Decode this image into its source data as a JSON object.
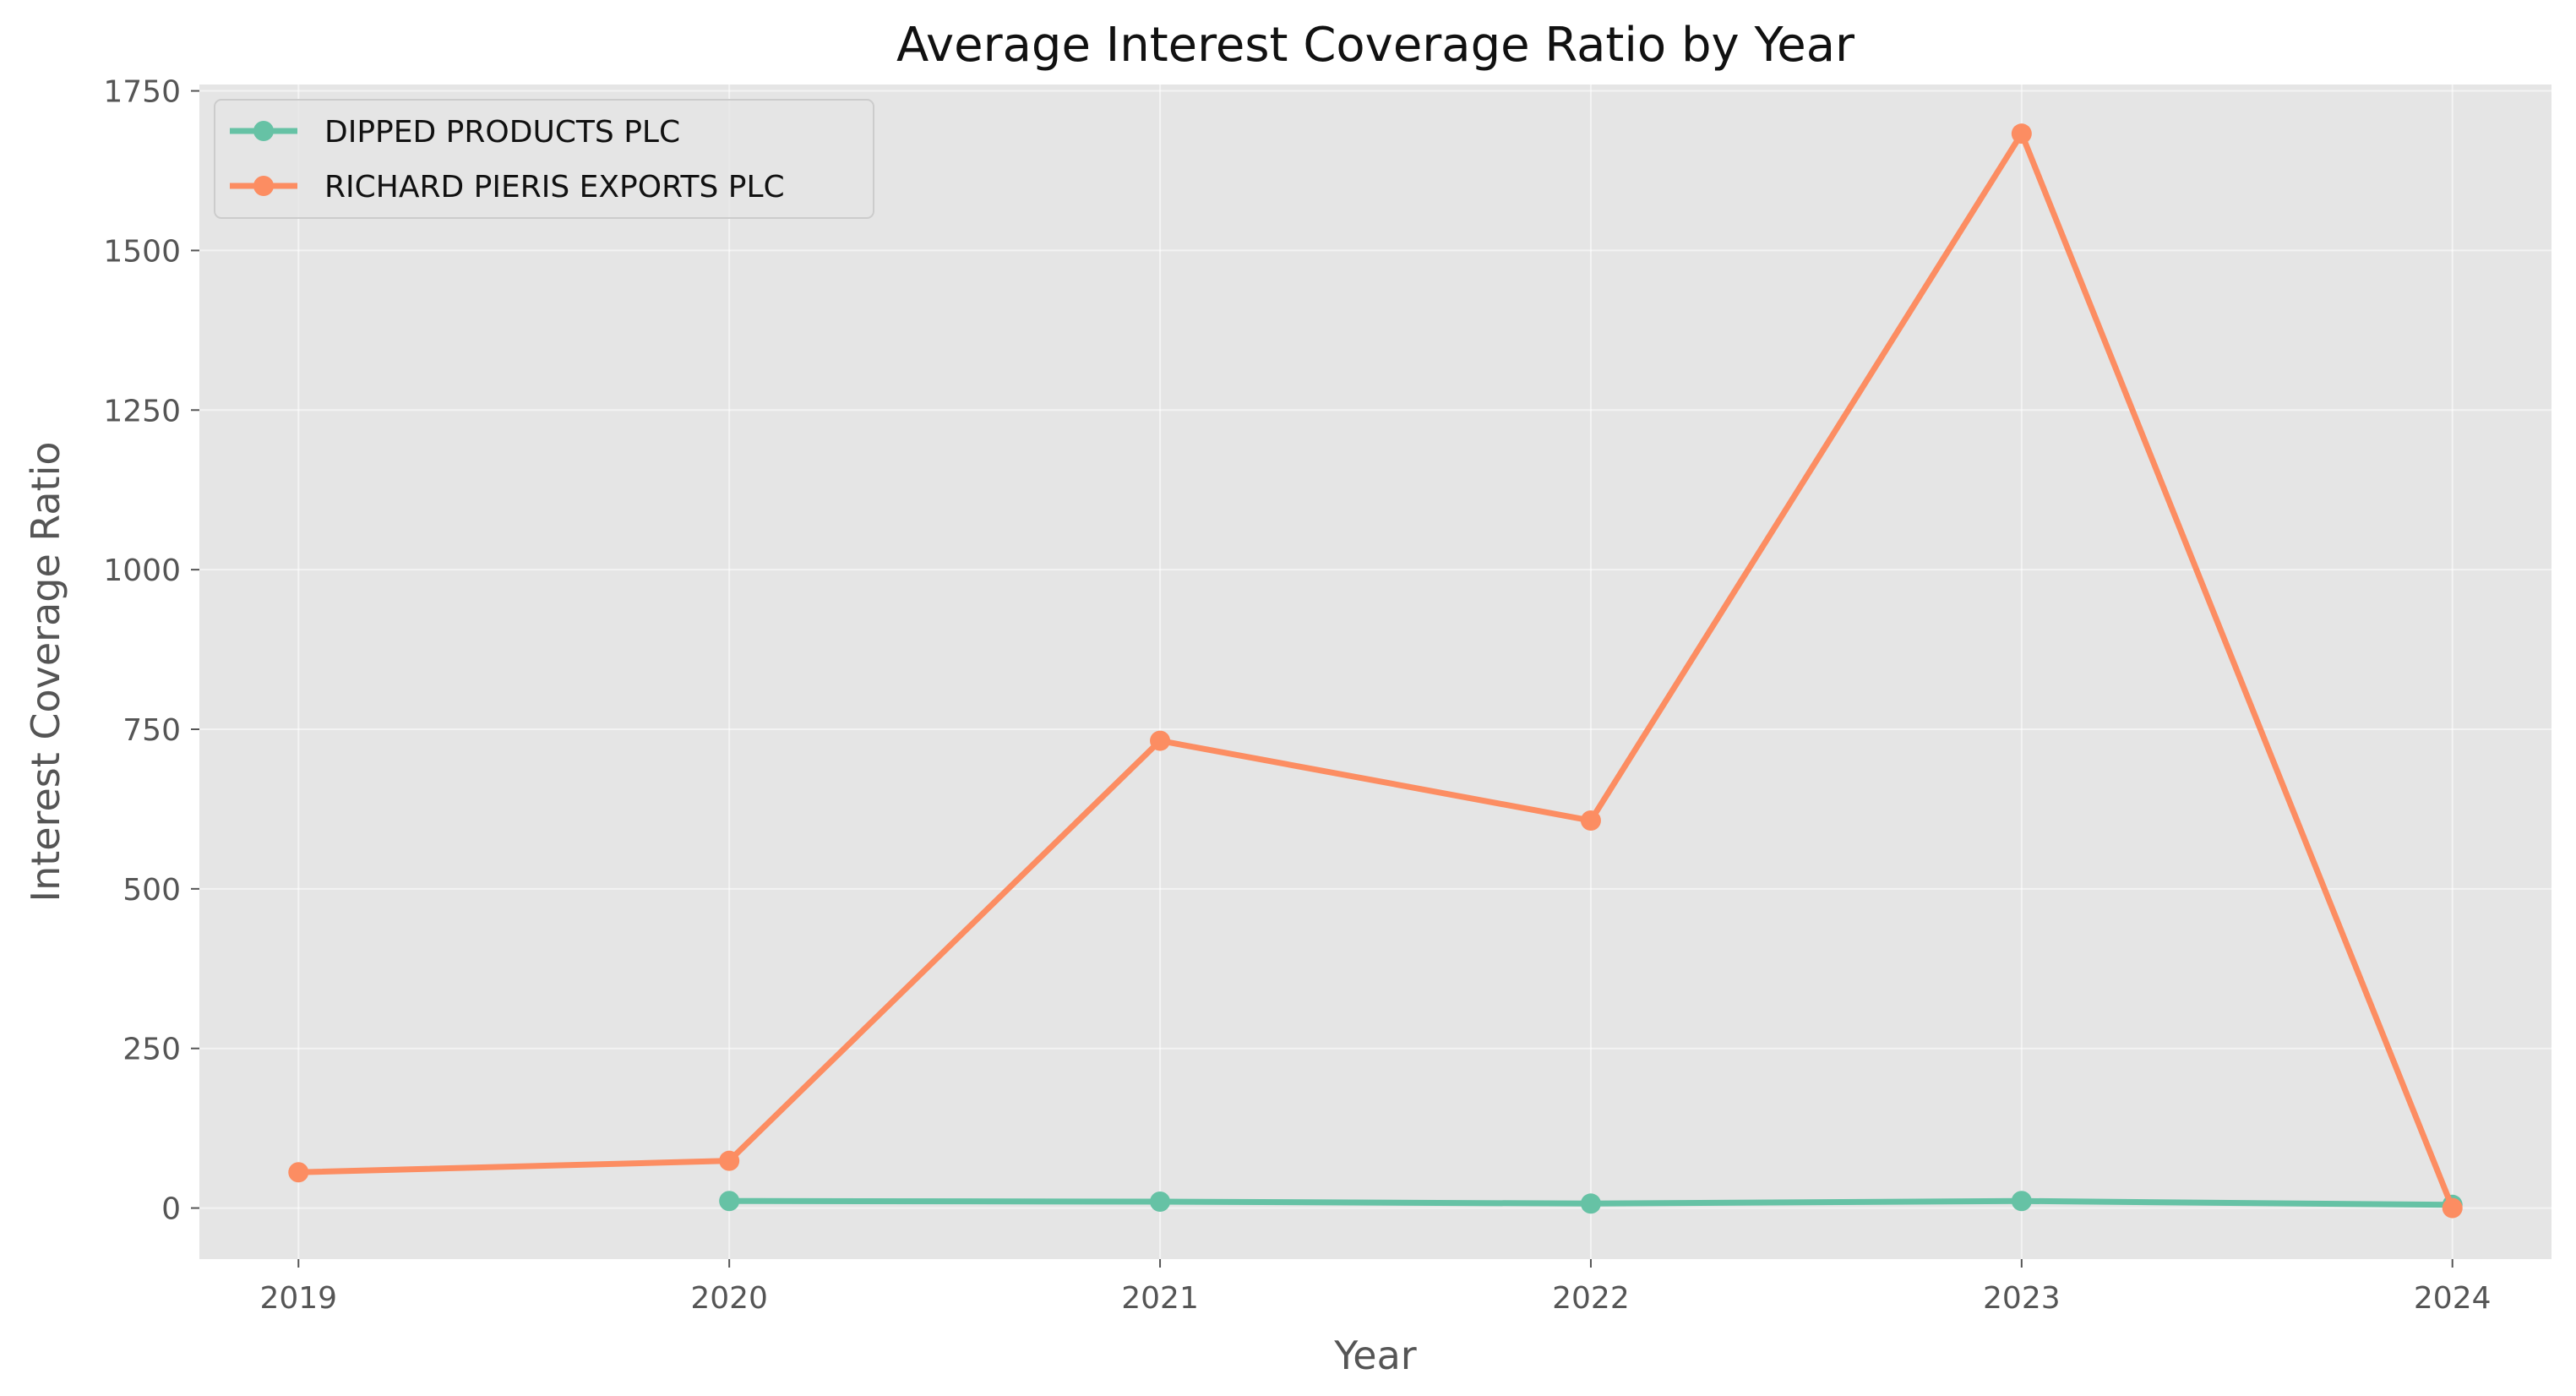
{
  "chart_data": {
    "type": "line",
    "title": "Average Interest Coverage Ratio by Year",
    "xlabel": "Year",
    "ylabel": "Interest Coverage Ratio",
    "x": [
      2019,
      2020,
      2021,
      2022,
      2023,
      2024
    ],
    "xlim": [
      2018.77,
      2024.23
    ],
    "ylim": [
      -80,
      1760
    ],
    "xticks": [
      "2019",
      "2020",
      "2021",
      "2022",
      "2023",
      "2024"
    ],
    "yticks": [
      0,
      250,
      500,
      750,
      1000,
      1250,
      1500,
      1750
    ],
    "ytick_labels": [
      "0",
      "250",
      "500",
      "750",
      "1000",
      "1250",
      "1500",
      "1750"
    ],
    "grid": true,
    "legend_position": "top-left",
    "series": [
      {
        "name": "DIPPED PRODUCTS PLC",
        "color": "#66c2a5",
        "values": [
          null,
          11,
          10,
          7,
          11,
          5
        ]
      },
      {
        "name": "RICHARD PIERIS EXPORTS PLC",
        "color": "#fc8d62",
        "values": [
          56,
          74,
          732,
          607,
          1683,
          0
        ]
      }
    ]
  }
}
